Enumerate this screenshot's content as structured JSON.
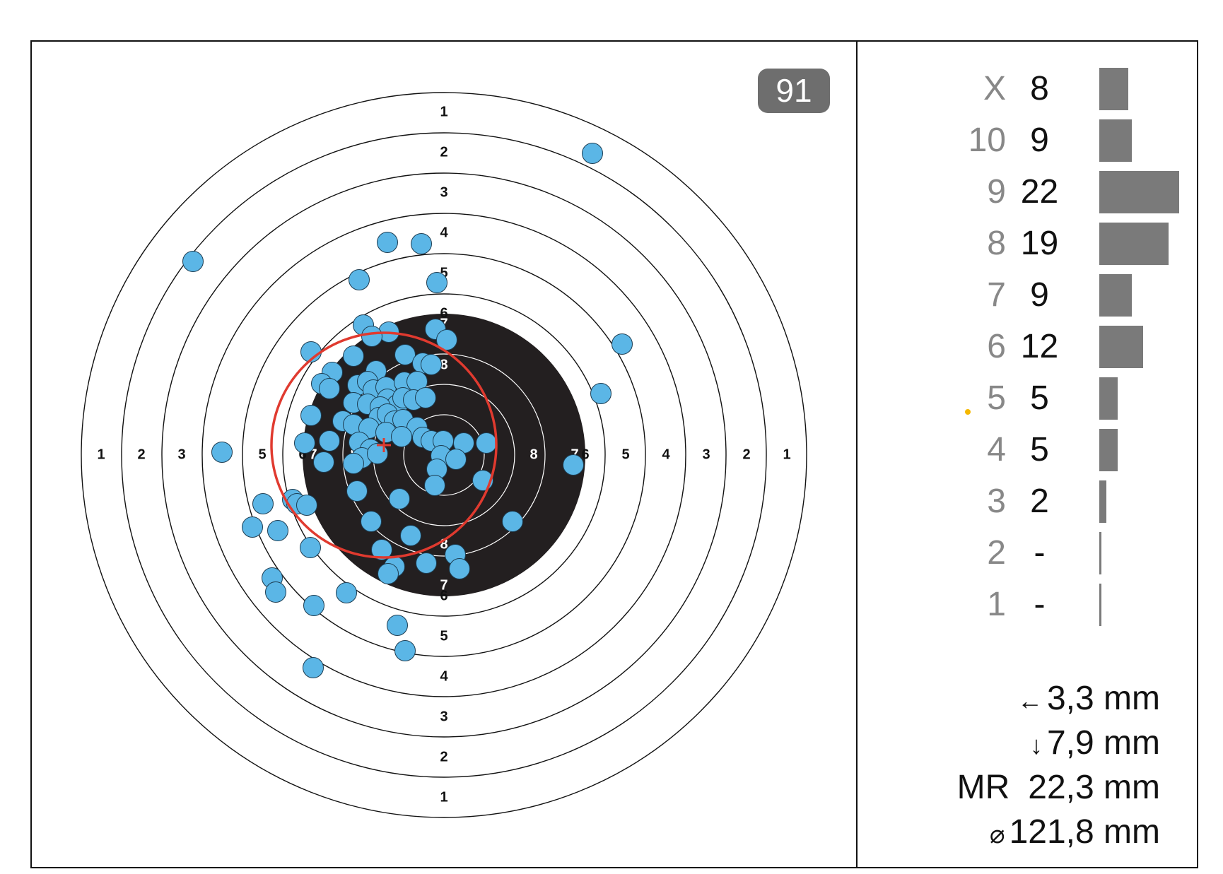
{
  "target": {
    "shot_count_badge": "91",
    "ring_numbers_right": [
      "1",
      "2",
      "3",
      "4",
      "5",
      "6",
      "7",
      "8"
    ],
    "ring_numbers_top": [
      "1",
      "2",
      "3",
      "4",
      "5",
      "6",
      "7",
      "8"
    ],
    "colors": {
      "black_zone": "#231f20",
      "shot_fill": "#5bb6e6",
      "mean_circle": "#e03a2f",
      "center_cross": "#e03a2f",
      "badge_bg": "#6e6e6e",
      "ring_line": "#111111",
      "inner_ring_line": "#ffffff"
    }
  },
  "histogram": {
    "rows": [
      {
        "label": "X",
        "count": "8",
        "value": 8
      },
      {
        "label": "10",
        "count": "9",
        "value": 9
      },
      {
        "label": "9",
        "count": "22",
        "value": 22
      },
      {
        "label": "8",
        "count": "19",
        "value": 19
      },
      {
        "label": "7",
        "count": "9",
        "value": 9
      },
      {
        "label": "6",
        "count": "12",
        "value": 12
      },
      {
        "label": "5",
        "count": "5",
        "value": 5,
        "marker": true
      },
      {
        "label": "4",
        "count": "5",
        "value": 5
      },
      {
        "label": "3",
        "count": "2",
        "value": 2
      },
      {
        "label": "2",
        "count": "-",
        "value": 0
      },
      {
        "label": "1",
        "count": "-",
        "value": 0
      }
    ],
    "bar_color": "#7a7a7a",
    "marker_color": "#f5b800"
  },
  "stats": {
    "offset_x_arrow": "←",
    "offset_x": "3,3 mm",
    "offset_y_arrow": "↓",
    "offset_y": "7,9 mm",
    "mr_label": "MR",
    "mr_value": "22,3 mm",
    "diameter_symbol": "⌀",
    "diameter_value": "121,8 mm"
  }
}
